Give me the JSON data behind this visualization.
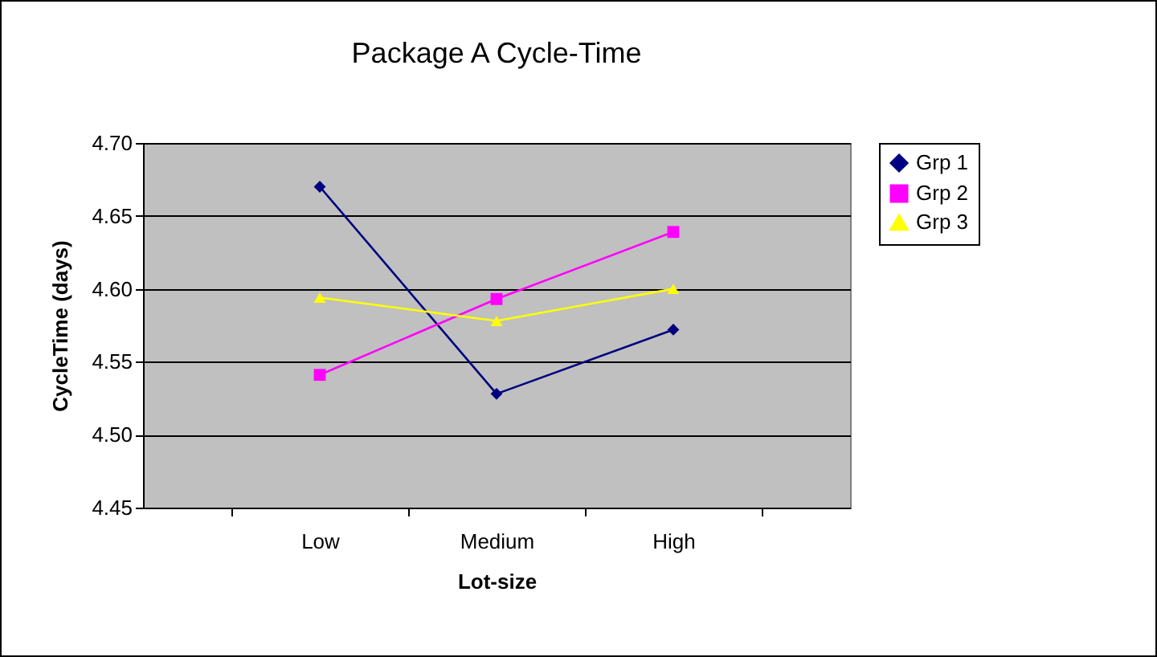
{
  "chart_data": {
    "type": "line",
    "title": "Package A Cycle-Time",
    "xlabel": "Lot-size",
    "ylabel": "CycleTime (days)",
    "categories": [
      "Low",
      "Medium",
      "High"
    ],
    "series": [
      {
        "name": "Grp 1",
        "color": "#000080",
        "marker": "diamond",
        "values": [
          4.67,
          4.528,
          4.572
        ]
      },
      {
        "name": "Grp 2",
        "color": "#ff00ff",
        "marker": "square",
        "values": [
          4.541,
          4.593,
          4.639
        ]
      },
      {
        "name": "Grp 3",
        "color": "#ffff00",
        "marker": "triangle",
        "values": [
          4.594,
          4.578,
          4.6
        ]
      }
    ],
    "ylim": [
      4.45,
      4.7
    ],
    "yticks": [
      {
        "value": 4.45,
        "label": "4.45"
      },
      {
        "value": 4.5,
        "label": "4.50"
      },
      {
        "value": 4.55,
        "label": "4.55"
      },
      {
        "value": 4.6,
        "label": "4.60"
      },
      {
        "value": 4.65,
        "label": "4.65"
      },
      {
        "value": 4.7,
        "label": "4.70"
      }
    ],
    "grid": "y",
    "legend": "right"
  }
}
